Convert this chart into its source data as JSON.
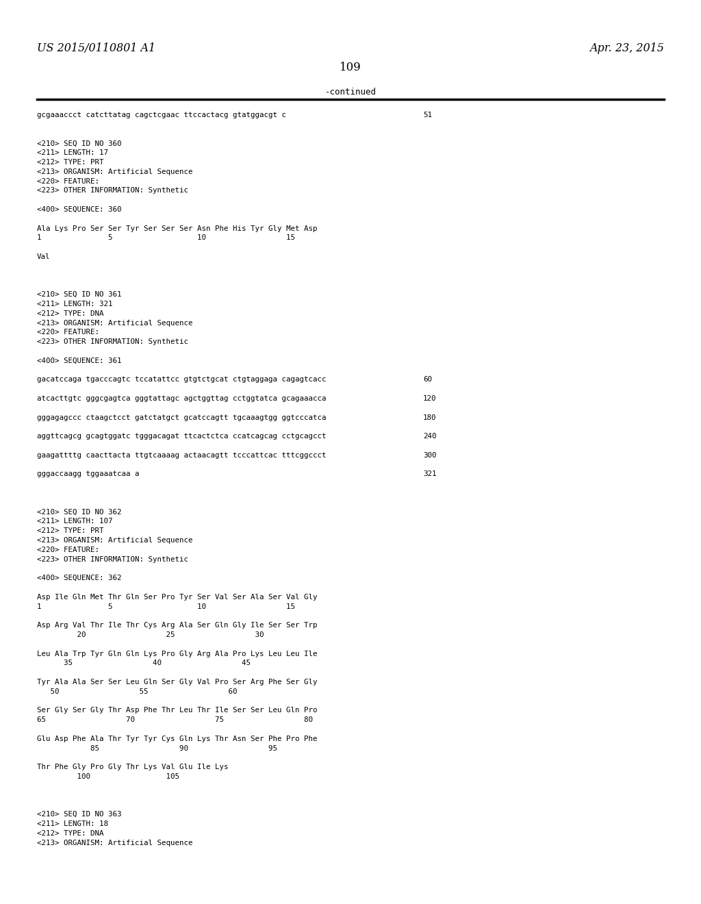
{
  "bg_color": "#ffffff",
  "top_left_text": "US 2015/0110801 A1",
  "top_right_text": "Apr. 23, 2015",
  "page_number": "109",
  "continued_text": "-continued",
  "lines": [
    {
      "text": "gcgaaaccct catcttatag cagctcgaac ttccactacg gtatggacgt c",
      "right_num": "51"
    },
    {
      "text": "",
      "right_num": ""
    },
    {
      "text": "",
      "right_num": ""
    },
    {
      "text": "<210> SEQ ID NO 360",
      "right_num": ""
    },
    {
      "text": "<211> LENGTH: 17",
      "right_num": ""
    },
    {
      "text": "<212> TYPE: PRT",
      "right_num": ""
    },
    {
      "text": "<213> ORGANISM: Artificial Sequence",
      "right_num": ""
    },
    {
      "text": "<220> FEATURE:",
      "right_num": ""
    },
    {
      "text": "<223> OTHER INFORMATION: Synthetic",
      "right_num": ""
    },
    {
      "text": "",
      "right_num": ""
    },
    {
      "text": "<400> SEQUENCE: 360",
      "right_num": ""
    },
    {
      "text": "",
      "right_num": ""
    },
    {
      "text": "Ala Lys Pro Ser Ser Tyr Ser Ser Ser Asn Phe His Tyr Gly Met Asp",
      "right_num": ""
    },
    {
      "text": "1               5                   10                  15",
      "right_num": ""
    },
    {
      "text": "",
      "right_num": ""
    },
    {
      "text": "Val",
      "right_num": ""
    },
    {
      "text": "",
      "right_num": ""
    },
    {
      "text": "",
      "right_num": ""
    },
    {
      "text": "",
      "right_num": ""
    },
    {
      "text": "<210> SEQ ID NO 361",
      "right_num": ""
    },
    {
      "text": "<211> LENGTH: 321",
      "right_num": ""
    },
    {
      "text": "<212> TYPE: DNA",
      "right_num": ""
    },
    {
      "text": "<213> ORGANISM: Artificial Sequence",
      "right_num": ""
    },
    {
      "text": "<220> FEATURE:",
      "right_num": ""
    },
    {
      "text": "<223> OTHER INFORMATION: Synthetic",
      "right_num": ""
    },
    {
      "text": "",
      "right_num": ""
    },
    {
      "text": "<400> SEQUENCE: 361",
      "right_num": ""
    },
    {
      "text": "",
      "right_num": ""
    },
    {
      "text": "gacatccaga tgacccagtc tccatattcc gtgtctgcat ctgtaggaga cagagtcacc",
      "right_num": "60"
    },
    {
      "text": "",
      "right_num": ""
    },
    {
      "text": "atcacttgtc gggcgagtca gggtattagc agctggttag cctggtatca gcagaaacca",
      "right_num": "120"
    },
    {
      "text": "",
      "right_num": ""
    },
    {
      "text": "gggagagccc ctaagctcct gatctatgct gcatccagtt tgcaaagtgg ggtcccatca",
      "right_num": "180"
    },
    {
      "text": "",
      "right_num": ""
    },
    {
      "text": "aggttcagcg gcagtggatc tgggacagat ttcactctca ccatcagcag cctgcagcct",
      "right_num": "240"
    },
    {
      "text": "",
      "right_num": ""
    },
    {
      "text": "gaagattttg caacttacta ttgtcaaaag actaacagtt tcccattcac tttcggccct",
      "right_num": "300"
    },
    {
      "text": "",
      "right_num": ""
    },
    {
      "text": "gggaccaagg tggaaatcaa a",
      "right_num": "321"
    },
    {
      "text": "",
      "right_num": ""
    },
    {
      "text": "",
      "right_num": ""
    },
    {
      "text": "",
      "right_num": ""
    },
    {
      "text": "<210> SEQ ID NO 362",
      "right_num": ""
    },
    {
      "text": "<211> LENGTH: 107",
      "right_num": ""
    },
    {
      "text": "<212> TYPE: PRT",
      "right_num": ""
    },
    {
      "text": "<213> ORGANISM: Artificial Sequence",
      "right_num": ""
    },
    {
      "text": "<220> FEATURE:",
      "right_num": ""
    },
    {
      "text": "<223> OTHER INFORMATION: Synthetic",
      "right_num": ""
    },
    {
      "text": "",
      "right_num": ""
    },
    {
      "text": "<400> SEQUENCE: 362",
      "right_num": ""
    },
    {
      "text": "",
      "right_num": ""
    },
    {
      "text": "Asp Ile Gln Met Thr Gln Ser Pro Tyr Ser Val Ser Ala Ser Val Gly",
      "right_num": ""
    },
    {
      "text": "1               5                   10                  15",
      "right_num": ""
    },
    {
      "text": "",
      "right_num": ""
    },
    {
      "text": "Asp Arg Val Thr Ile Thr Cys Arg Ala Ser Gln Gly Ile Ser Ser Trp",
      "right_num": ""
    },
    {
      "text": "         20                  25                  30",
      "right_num": ""
    },
    {
      "text": "",
      "right_num": ""
    },
    {
      "text": "Leu Ala Trp Tyr Gln Gln Lys Pro Gly Arg Ala Pro Lys Leu Leu Ile",
      "right_num": ""
    },
    {
      "text": "      35                  40                  45",
      "right_num": ""
    },
    {
      "text": "",
      "right_num": ""
    },
    {
      "text": "Tyr Ala Ala Ser Ser Leu Gln Ser Gly Val Pro Ser Arg Phe Ser Gly",
      "right_num": ""
    },
    {
      "text": "   50                  55                  60",
      "right_num": ""
    },
    {
      "text": "",
      "right_num": ""
    },
    {
      "text": "Ser Gly Ser Gly Thr Asp Phe Thr Leu Thr Ile Ser Ser Leu Gln Pro",
      "right_num": ""
    },
    {
      "text": "65                  70                  75                  80",
      "right_num": ""
    },
    {
      "text": "",
      "right_num": ""
    },
    {
      "text": "Glu Asp Phe Ala Thr Tyr Tyr Cys Gln Lys Thr Asn Ser Phe Pro Phe",
      "right_num": ""
    },
    {
      "text": "            85                  90                  95",
      "right_num": ""
    },
    {
      "text": "",
      "right_num": ""
    },
    {
      "text": "Thr Phe Gly Pro Gly Thr Lys Val Glu Ile Lys",
      "right_num": ""
    },
    {
      "text": "         100                 105",
      "right_num": ""
    },
    {
      "text": "",
      "right_num": ""
    },
    {
      "text": "",
      "right_num": ""
    },
    {
      "text": "",
      "right_num": ""
    },
    {
      "text": "<210> SEQ ID NO 363",
      "right_num": ""
    },
    {
      "text": "<211> LENGTH: 18",
      "right_num": ""
    },
    {
      "text": "<212> TYPE: DNA",
      "right_num": ""
    },
    {
      "text": "<213> ORGANISM: Artificial Sequence",
      "right_num": ""
    }
  ]
}
